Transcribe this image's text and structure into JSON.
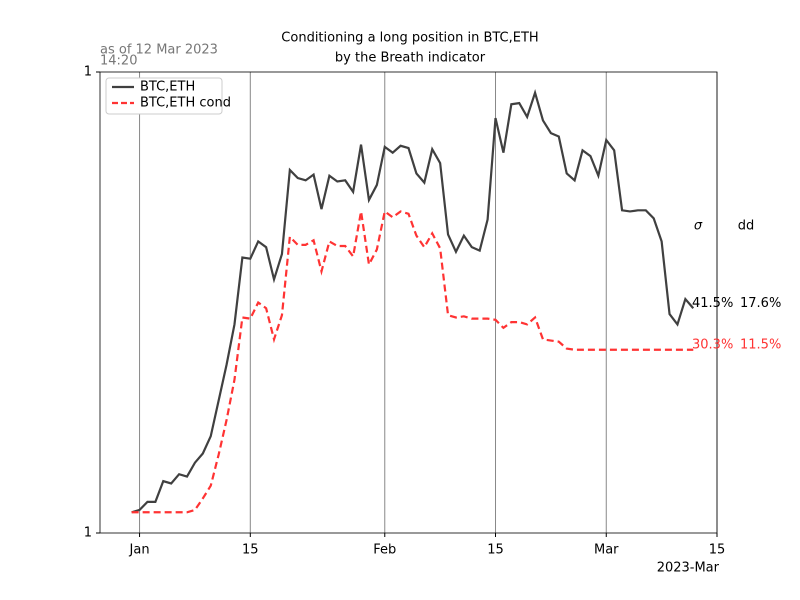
{
  "chart_data": {
    "type": "line",
    "title_lines": [
      "Conditioning a long position in BTC,ETH",
      "by the Breath indicator"
    ],
    "note_lines": [
      "as of 12 Mar 2023",
      "14:20"
    ],
    "x_offset_label": "2023-Mar",
    "stat_headers": [
      "σ",
      "dd"
    ],
    "x": [
      "2022-12-31",
      "2023-01-01",
      "2023-01-02",
      "2023-01-03",
      "2023-01-04",
      "2023-01-05",
      "2023-01-06",
      "2023-01-07",
      "2023-01-08",
      "2023-01-09",
      "2023-01-10",
      "2023-01-11",
      "2023-01-12",
      "2023-01-13",
      "2023-01-14",
      "2023-01-15",
      "2023-01-16",
      "2023-01-17",
      "2023-01-18",
      "2023-01-19",
      "2023-01-20",
      "2023-01-21",
      "2023-01-22",
      "2023-01-23",
      "2023-01-24",
      "2023-01-25",
      "2023-01-26",
      "2023-01-27",
      "2023-01-28",
      "2023-01-29",
      "2023-01-30",
      "2023-01-31",
      "2023-02-01",
      "2023-02-02",
      "2023-02-03",
      "2023-02-04",
      "2023-02-05",
      "2023-02-06",
      "2023-02-07",
      "2023-02-08",
      "2023-02-09",
      "2023-02-10",
      "2023-02-11",
      "2023-02-12",
      "2023-02-13",
      "2023-02-14",
      "2023-02-15",
      "2023-02-16",
      "2023-02-17",
      "2023-02-18",
      "2023-02-19",
      "2023-02-20",
      "2023-02-21",
      "2023-02-22",
      "2023-02-23",
      "2023-02-24",
      "2023-02-25",
      "2023-02-26",
      "2023-02-27",
      "2023-02-28",
      "2023-03-01",
      "2023-03-02",
      "2023-03-03",
      "2023-03-04",
      "2023-03-05",
      "2023-03-06",
      "2023-03-07",
      "2023-03-08",
      "2023-03-09",
      "2023-03-10",
      "2023-03-11",
      "2023-03-12"
    ],
    "series": [
      {
        "name": "BTC,ETH",
        "color": "#404040",
        "dash": false,
        "stats": [
          "41.5%",
          "17.6%"
        ],
        "values": [
          1.018,
          1.02,
          1.027,
          1.027,
          1.045,
          1.043,
          1.051,
          1.049,
          1.061,
          1.069,
          1.084,
          1.115,
          1.146,
          1.181,
          1.239,
          1.238,
          1.253,
          1.248,
          1.22,
          1.242,
          1.315,
          1.308,
          1.306,
          1.311,
          1.281,
          1.31,
          1.305,
          1.306,
          1.296,
          1.337,
          1.289,
          1.302,
          1.335,
          1.33,
          1.336,
          1.334,
          1.312,
          1.304,
          1.333,
          1.321,
          1.259,
          1.244,
          1.258,
          1.248,
          1.245,
          1.272,
          1.36,
          1.33,
          1.372,
          1.373,
          1.361,
          1.382,
          1.358,
          1.347,
          1.344,
          1.312,
          1.306,
          1.332,
          1.327,
          1.31,
          1.341,
          1.332,
          1.28,
          1.279,
          1.28,
          1.28,
          1.273,
          1.253,
          1.19,
          1.181,
          1.203,
          1.195
        ]
      },
      {
        "name": "BTC,ETH cond",
        "color": "#ff3333",
        "dash": true,
        "stats": [
          "30.3%",
          "11.5%"
        ],
        "values": [
          1.018,
          1.018,
          1.018,
          1.018,
          1.018,
          1.018,
          1.018,
          1.018,
          1.02,
          1.03,
          1.041,
          1.068,
          1.098,
          1.133,
          1.187,
          1.186,
          1.2,
          1.195,
          1.168,
          1.189,
          1.257,
          1.25,
          1.25,
          1.254,
          1.227,
          1.253,
          1.249,
          1.249,
          1.24,
          1.279,
          1.233,
          1.246,
          1.279,
          1.274,
          1.279,
          1.277,
          1.258,
          1.248,
          1.26,
          1.247,
          1.189,
          1.187,
          1.188,
          1.186,
          1.186,
          1.186,
          1.185,
          1.178,
          1.183,
          1.183,
          1.181,
          1.187,
          1.168,
          1.167,
          1.166,
          1.16,
          1.159,
          1.159,
          1.159,
          1.159,
          1.159,
          1.159,
          1.159,
          1.159,
          1.159,
          1.159,
          1.159,
          1.159,
          1.159,
          1.159,
          1.159,
          1.159
        ]
      }
    ],
    "xlim": [
      "2022-12-27",
      "2023-03-15"
    ],
    "xticks": [
      {
        "value": "2023-01-01",
        "label": "Jan"
      },
      {
        "value": "2023-01-15",
        "label": "15"
      },
      {
        "value": "2023-02-01",
        "label": "Feb"
      },
      {
        "value": "2023-02-15",
        "label": "15"
      },
      {
        "value": "2023-03-01",
        "label": "Mar"
      },
      {
        "value": "2023-03-15",
        "label": "15"
      }
    ],
    "ylim": [
      1.0,
      1.4
    ],
    "yticks": [
      {
        "value": 1.0,
        "label": "1"
      },
      {
        "value": 1.4,
        "label": "1"
      }
    ],
    "grid_x": true,
    "legend": "upper left"
  }
}
